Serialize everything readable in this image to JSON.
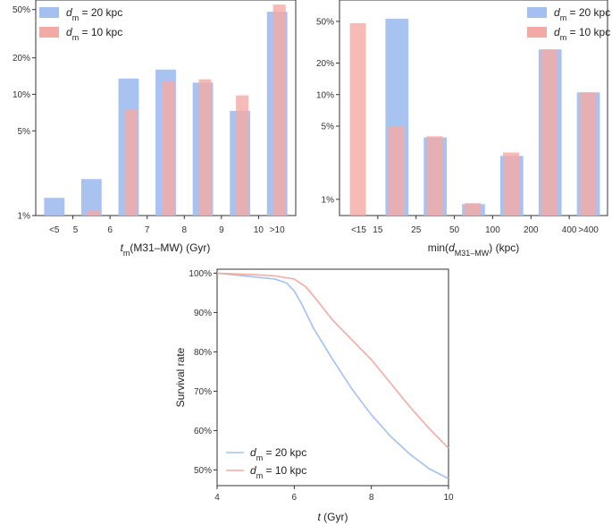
{
  "colors": {
    "blue": "#a4c0f0",
    "red": "#f4aaa4",
    "axis": "#333333"
  },
  "chart_data": [
    {
      "id": "a",
      "type": "bar",
      "scale": "log",
      "ylim": [
        1,
        60
      ],
      "ytick_values": [
        1,
        5,
        10,
        20,
        50
      ],
      "ytick_labels": [
        "1%",
        "5%",
        "10%",
        "20%",
        "50%"
      ],
      "xlabel": {
        "italic": "t",
        "sub": "m",
        "rest": "(M31–MW) (Gyr)"
      },
      "bin_labels": [
        "<5",
        "6",
        "7",
        "8",
        "9",
        ">10"
      ],
      "edge_labels": [
        "5",
        "6",
        "7",
        "8",
        "9",
        "10"
      ],
      "categories": [
        "<5",
        "5–6",
        "6–7",
        "7–8",
        "8–9",
        "9–10",
        ">10"
      ],
      "series": [
        {
          "name": "d_m = 20 kpc",
          "color_key": "blue",
          "values": [
            1.4,
            2.0,
            13.5,
            16.0,
            12.5,
            7.3,
            48.0
          ]
        },
        {
          "name": "d_m = 10 kpc",
          "color_key": "red",
          "values": [
            null,
            1.1,
            7.5,
            12.8,
            13.3,
            9.8,
            55.0
          ]
        }
      ],
      "legend": [
        {
          "sym": "d",
          "sub": "m",
          "rest": " = 20 kpc",
          "color_key": "blue"
        },
        {
          "sym": "d",
          "sub": "m",
          "rest": " = 10 kpc",
          "color_key": "red"
        }
      ]
    },
    {
      "id": "b",
      "type": "bar",
      "scale": "log",
      "ylim": [
        0.7,
        80
      ],
      "ytick_values": [
        1,
        5,
        10,
        20,
        50
      ],
      "ytick_labels": [
        "1%",
        "5%",
        "10%",
        "20%",
        "50%"
      ],
      "xlabel": {
        "pre": "min(",
        "italic": "d",
        "sub": "M31–MW",
        "rest": ") (kpc)"
      },
      "bin_labels": [
        "<15",
        ">400"
      ],
      "edge_labels": [
        "15",
        "25",
        "50",
        "100",
        "200",
        "400"
      ],
      "categories": [
        "<15",
        "15–25",
        "25–50",
        "50–100",
        "100–200",
        "200–400",
        ">400"
      ],
      "series": [
        {
          "name": "d_m = 20 kpc",
          "color_key": "blue",
          "values": [
            null,
            53.0,
            3.9,
            0.9,
            2.6,
            27.0,
            10.5
          ]
        },
        {
          "name": "d_m = 10 kpc",
          "color_key": "red",
          "values": [
            48.0,
            5.0,
            4.0,
            0.92,
            2.8,
            27.0,
            10.5
          ]
        }
      ],
      "legend": [
        {
          "sym": "d",
          "sub": "m",
          "rest": " = 20 kpc",
          "color_key": "blue"
        },
        {
          "sym": "d",
          "sub": "m",
          "rest": " = 10 kpc",
          "color_key": "red"
        }
      ]
    },
    {
      "id": "c",
      "type": "line",
      "xlim": [
        4,
        10
      ],
      "ylim": [
        46,
        101
      ],
      "xticks": [
        4,
        6,
        8,
        10
      ],
      "ytick_values": [
        50,
        60,
        70,
        80,
        90,
        100
      ],
      "ytick_labels": [
        "50%",
        "60%",
        "70%",
        "80%",
        "90%",
        "100%"
      ],
      "ylabel": "Survival rate",
      "xlabel": {
        "italic": "t",
        "rest": " (Gyr)"
      },
      "series": [
        {
          "name": "d_m = 20 kpc",
          "color_key": "blue",
          "x": [
            4,
            4.5,
            5,
            5.5,
            5.8,
            6,
            6.2,
            6.5,
            7,
            7.5,
            8,
            8.5,
            9,
            9.5,
            10
          ],
          "y": [
            100,
            99.5,
            99,
            98.5,
            97.5,
            95.5,
            92,
            86,
            78,
            70.5,
            64,
            58.5,
            54,
            50.3,
            47.8
          ]
        },
        {
          "name": "d_m = 10 kpc",
          "color_key": "red",
          "x": [
            4,
            4.5,
            5,
            5.5,
            6,
            6.3,
            6.6,
            7,
            7.5,
            8,
            8.5,
            9,
            9.5,
            10
          ],
          "y": [
            100,
            99.8,
            99.6,
            99.3,
            98.5,
            96.5,
            93,
            88,
            83,
            78,
            72,
            66,
            60.5,
            55.5
          ]
        }
      ],
      "legend": [
        {
          "sym": "d",
          "sub": "m",
          "rest": " = 20 kpc",
          "color_key": "blue"
        },
        {
          "sym": "d",
          "sub": "m",
          "rest": " = 10 kpc",
          "color_key": "red"
        }
      ]
    }
  ]
}
